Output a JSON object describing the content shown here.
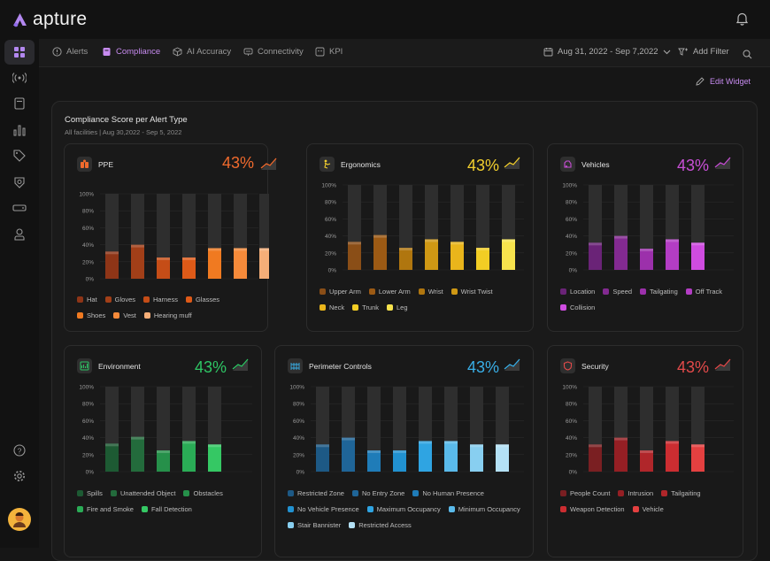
{
  "app": {
    "name": "apture"
  },
  "nav": {
    "tabs": [
      {
        "label": "Alerts",
        "icon": "alert-circle-icon"
      },
      {
        "label": "Compliance",
        "icon": "clipboard-icon",
        "active": true
      },
      {
        "label": "AI Accuracy",
        "icon": "cube-icon"
      },
      {
        "label": "Connectivity",
        "icon": "router-icon"
      },
      {
        "label": "KPI",
        "icon": "kpi-icon"
      }
    ],
    "date_range": "Aug 31, 2022 - Sep 7,2022",
    "add_filter": "Add Filter"
  },
  "widget": {
    "edit_label": "Edit Widget",
    "title": "Compliance Score per Alert Type",
    "subtitle": "All facilities | Aug 30,2022 - Sep 5, 2022"
  },
  "cards": [
    {
      "name": "PPE",
      "pct": "43%",
      "color": "#f06a2d",
      "legend": [
        {
          "label": "Hat",
          "color": "#8e3517"
        },
        {
          "label": "Gloves",
          "color": "#a23f18"
        },
        {
          "label": "Harness",
          "color": "#c54d17"
        },
        {
          "label": "Glasses",
          "color": "#de5a18"
        },
        {
          "label": "Shoes",
          "color": "#f07a21"
        },
        {
          "label": "Vest",
          "color": "#f58a3a"
        },
        {
          "label": "Hearing muff",
          "color": "#f5ae78"
        }
      ]
    },
    {
      "name": "Ergonomics",
      "pct": "43%",
      "color": "#f2cf2e",
      "legend": [
        {
          "label": "Upper Arm",
          "color": "#8a4e17"
        },
        {
          "label": "Lower Arm",
          "color": "#9c5a14"
        },
        {
          "label": "Wrist",
          "color": "#b0760f"
        },
        {
          "label": "Wrist Twist",
          "color": "#cf9814"
        },
        {
          "label": "Neck",
          "color": "#eab51b"
        },
        {
          "label": "Trunk",
          "color": "#f2cd24"
        },
        {
          "label": "Leg",
          "color": "#f7e34d"
        }
      ]
    },
    {
      "name": "Vehicles",
      "pct": "43%",
      "color": "#c84fd6",
      "legend": [
        {
          "label": "Location",
          "color": "#6a2377"
        },
        {
          "label": "Speed",
          "color": "#832a91"
        },
        {
          "label": "Tailgating",
          "color": "#9c30ab"
        },
        {
          "label": "Off Track",
          "color": "#b33dc4"
        },
        {
          "label": "Collision",
          "color": "#cf4ce0"
        }
      ]
    },
    {
      "name": "Environment",
      "pct": "43%",
      "color": "#2ec564",
      "legend": [
        {
          "label": "Spills",
          "color": "#1d5a33"
        },
        {
          "label": "Unattended Object",
          "color": "#236b3c"
        },
        {
          "label": "Obstacles",
          "color": "#26904a"
        },
        {
          "label": "Fire and Smoke",
          "color": "#2aac56"
        },
        {
          "label": "Fall Detection",
          "color": "#35c864"
        }
      ]
    },
    {
      "name": "Perimeter Controls",
      "pct": "43%",
      "color": "#39aee6",
      "legend": [
        {
          "label": "Restricted Zone",
          "color": "#1d5985"
        },
        {
          "label": "No Entry Zone",
          "color": "#1f6598"
        },
        {
          "label": "No Human Presence",
          "color": "#1f7cb8"
        },
        {
          "label": "No Vehicle Presence",
          "color": "#2191d0"
        },
        {
          "label": "Maximum Occupancy",
          "color": "#2fa4e2"
        },
        {
          "label": "Minimum Occupancy",
          "color": "#5abaea"
        },
        {
          "label": "Stair Bannister",
          "color": "#88cff0"
        },
        {
          "label": "Restricted Access",
          "color": "#b4e1f6"
        }
      ]
    },
    {
      "name": "Security",
      "pct": "43%",
      "color": "#e24a4a",
      "legend": [
        {
          "label": "People Count",
          "color": "#7a1f22"
        },
        {
          "label": "Intrusion",
          "color": "#951f24"
        },
        {
          "label": "Tailgaiting",
          "color": "#b0262a"
        },
        {
          "label": "Weapon Detection",
          "color": "#cc2d31"
        },
        {
          "label": "Vehicle",
          "color": "#e44040"
        }
      ]
    }
  ],
  "chart_data": [
    {
      "type": "bar",
      "title": "PPE",
      "ylim": [
        0,
        100
      ],
      "yticks": [
        "100%",
        "80%",
        "60%",
        "40%",
        "20%",
        "0%"
      ],
      "categories": [
        "Hat",
        "Gloves",
        "Harness",
        "Glasses",
        "Shoes",
        "Vest",
        "Hearing muff"
      ],
      "values": [
        32,
        40,
        25,
        25,
        36,
        36,
        36
      ]
    },
    {
      "type": "bar",
      "title": "Ergonomics",
      "ylim": [
        0,
        100
      ],
      "yticks": [
        "100%",
        "80%",
        "60%",
        "40%",
        "20%",
        "0%"
      ],
      "categories": [
        "Upper Arm",
        "Lower Arm",
        "Wrist",
        "Wrist Twist",
        "Neck",
        "Trunk",
        "Leg"
      ],
      "values": [
        33,
        41,
        26,
        36,
        33,
        26,
        36
      ]
    },
    {
      "type": "bar",
      "title": "Vehicles",
      "ylim": [
        0,
        100
      ],
      "yticks": [
        "100%",
        "80%",
        "60%",
        "40%",
        "20%",
        "0%"
      ],
      "categories": [
        "Location",
        "Speed",
        "Tailgating",
        "Off Track",
        "Collision"
      ],
      "values": [
        32,
        40,
        25,
        36,
        32
      ]
    },
    {
      "type": "bar",
      "title": "Environment",
      "ylim": [
        0,
        100
      ],
      "yticks": [
        "100%",
        "80%",
        "60%",
        "40%",
        "20%",
        "0%"
      ],
      "categories": [
        "Spills",
        "Unattended Object",
        "Obstacles",
        "Fire and Smoke",
        "Fall Detection"
      ],
      "values": [
        33,
        41,
        25,
        36,
        32
      ]
    },
    {
      "type": "bar",
      "title": "Perimeter Controls",
      "ylim": [
        0,
        100
      ],
      "yticks": [
        "100%",
        "80%",
        "60%",
        "40%",
        "20%",
        "0%"
      ],
      "categories": [
        "Restricted Zone",
        "No Entry Zone",
        "No Human Presence",
        "No Vehicle Presence",
        "Maximum Occupancy",
        "Minimum Occupancy",
        "Stair Bannister",
        "Restricted Access"
      ],
      "values": [
        32,
        40,
        25,
        25,
        36,
        36,
        32,
        32
      ]
    },
    {
      "type": "bar",
      "title": "Security",
      "ylim": [
        0,
        100
      ],
      "yticks": [
        "100%",
        "80%",
        "60%",
        "40%",
        "20%",
        "0%"
      ],
      "categories": [
        "People Count",
        "Intrusion",
        "Tailgaiting",
        "Weapon Detection",
        "Vehicle"
      ],
      "values": [
        32,
        40,
        25,
        36,
        32
      ]
    }
  ]
}
